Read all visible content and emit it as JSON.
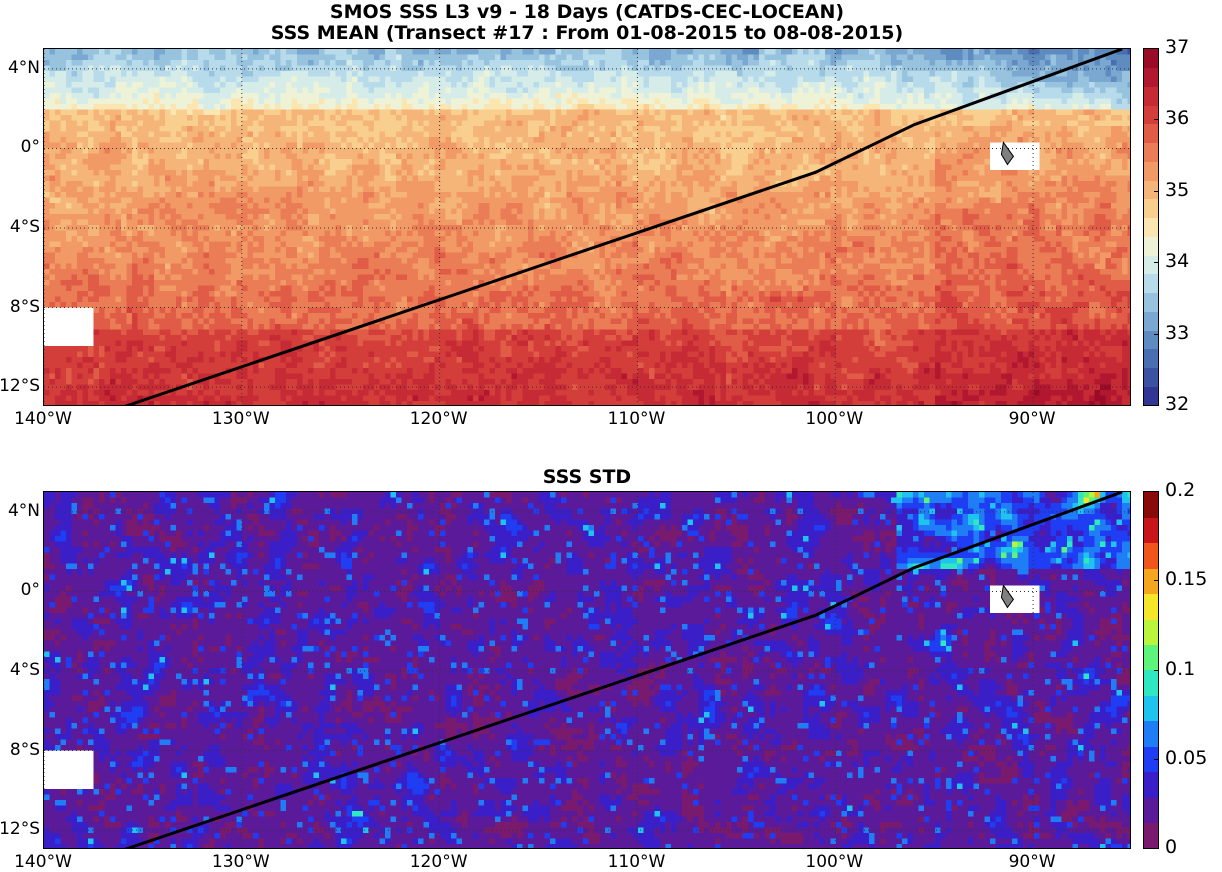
{
  "figure": {
    "title_line1": "SMOS SSS L3 v9 - 18 Days (CATDS-CEC-LOCEAN)",
    "title_line2": "SSS MEAN (Transect #17 : From 01-08-2015 to 08-08-2015)",
    "title_std": "SSS STD"
  },
  "map_extent": {
    "lon_min": -140,
    "lon_max": -85,
    "lat_min": -13,
    "lat_max": 5
  },
  "lon_ticks": [
    {
      "value": -140,
      "label": "140°W"
    },
    {
      "value": -130,
      "label": "130°W"
    },
    {
      "value": -120,
      "label": "120°W"
    },
    {
      "value": -110,
      "label": "110°W"
    },
    {
      "value": -100,
      "label": "100°W"
    },
    {
      "value": -90,
      "label": "90°W"
    }
  ],
  "lat_ticks": [
    {
      "value": 4,
      "label": "4°N"
    },
    {
      "value": 0,
      "label": "0°"
    },
    {
      "value": -4,
      "label": "4°S"
    },
    {
      "value": -8,
      "label": "8°S"
    },
    {
      "value": -12,
      "label": "12°S"
    }
  ],
  "transect": {
    "points": [
      {
        "lon": -136,
        "lat": -13
      },
      {
        "lon": -101,
        "lat": -1.2
      },
      {
        "lon": -96,
        "lat": 1.2
      },
      {
        "lon": -85.5,
        "lat": 5
      }
    ]
  },
  "islands": {
    "galapagos": {
      "lon": -91,
      "lat": -0.4
    }
  },
  "colorbars": {
    "mean": {
      "min": 32,
      "max": 37,
      "ticks": [
        {
          "value": 37,
          "label": "37"
        },
        {
          "value": 36,
          "label": "36"
        },
        {
          "value": 35,
          "label": "35"
        },
        {
          "value": 34,
          "label": "34"
        },
        {
          "value": 33,
          "label": "33"
        },
        {
          "value": 32,
          "label": "32"
        }
      ],
      "colors": [
        "#313695",
        "#3a52a1",
        "#4a6fb0",
        "#5f8cc0",
        "#7aa8d1",
        "#98c3df",
        "#b7dbea",
        "#d6ece9",
        "#eef3d8",
        "#fbe5b0",
        "#f8cf8e",
        "#f5b579",
        "#f19a66",
        "#ea7d55",
        "#e05c46",
        "#d43e3a",
        "#c52a35",
        "#b1172f",
        "#990b26"
      ]
    },
    "std": {
      "min": 0,
      "max": 0.2,
      "ticks": [
        {
          "value": 0.2,
          "label": "0.2"
        },
        {
          "value": 0.15,
          "label": "0.15"
        },
        {
          "value": 0.1,
          "label": "0.1"
        },
        {
          "value": 0.05,
          "label": "0.05"
        },
        {
          "value": 0,
          "label": "0"
        }
      ],
      "colors": [
        "#7a1a6e",
        "#5a1a9a",
        "#3a1fc8",
        "#1f3df2",
        "#1f7df5",
        "#1fc3f0",
        "#2fe7c0",
        "#5cf57a",
        "#b9f53a",
        "#f5e62a",
        "#f5a61f",
        "#f0561a",
        "#c9141a",
        "#8a0a0a"
      ]
    }
  }
}
